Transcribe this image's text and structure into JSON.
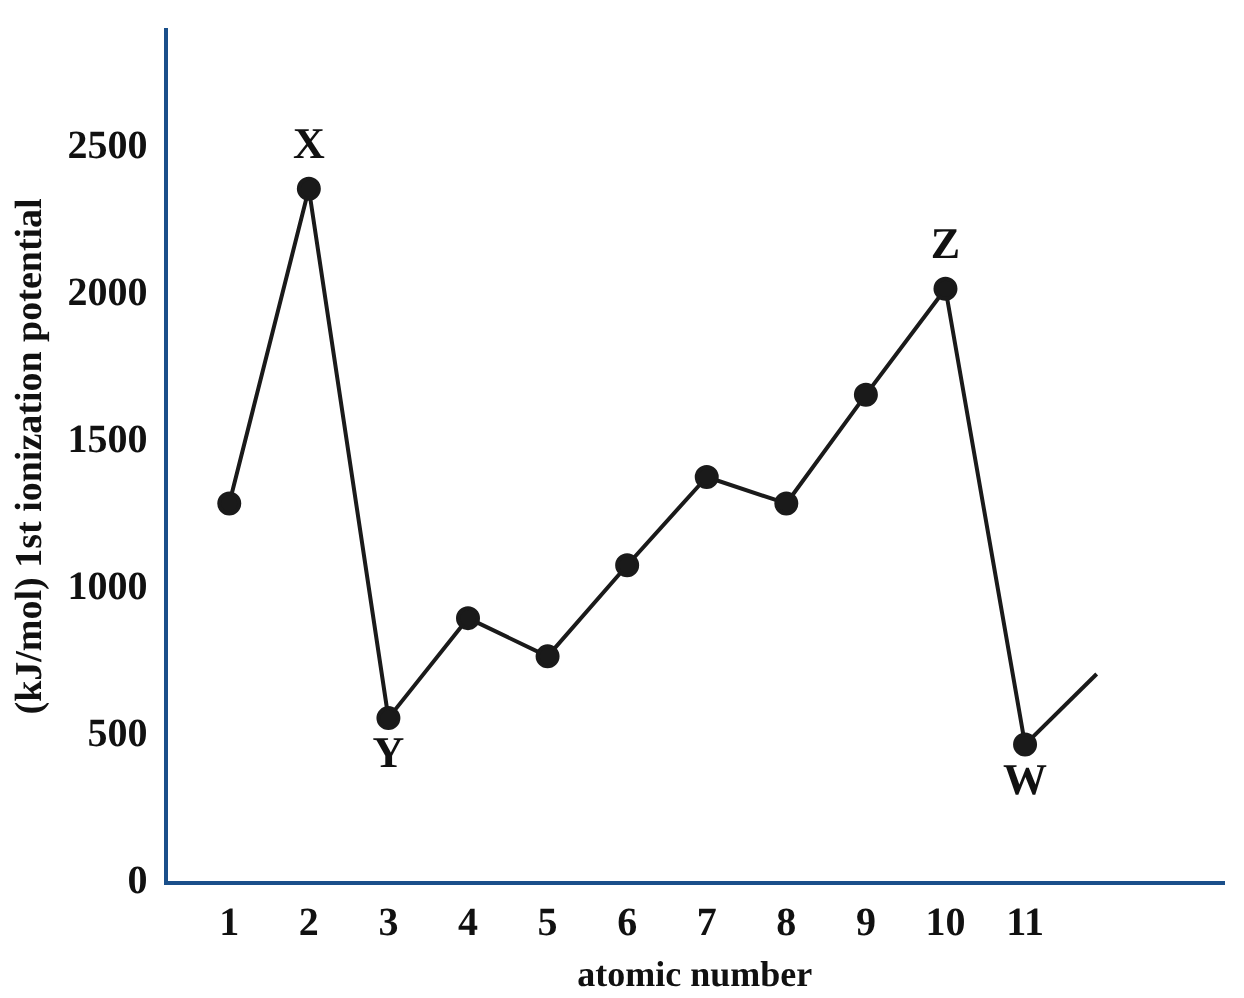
{
  "chart_data": {
    "type": "line",
    "xlabel": "atomic number",
    "ylabel": "(kJ/mol) 1st ionization potential",
    "series": [
      {
        "color": "#1a1a1a",
        "x": [
          1,
          2,
          3,
          4,
          5,
          6,
          7,
          8,
          9,
          10,
          11
        ],
        "values": [
          1290,
          2360,
          560,
          900,
          770,
          1080,
          1380,
          1290,
          1660,
          2020,
          470
        ],
        "marker": "circle"
      },
      {
        "color": "#1a1a1a",
        "x": [
          11,
          11.9
        ],
        "values": [
          470,
          710
        ],
        "marker": "none"
      }
    ],
    "xlim": [
      0.2,
      13.5
    ],
    "xticks": [
      1,
      2,
      3,
      4,
      5,
      6,
      7,
      8,
      9,
      10,
      11
    ],
    "ylim": [
      0,
      2900
    ],
    "yticks": [
      0,
      500,
      1000,
      1500,
      2000,
      2500
    ],
    "grid": false,
    "legend": false,
    "annotations": [
      {
        "text": "X",
        "x": 2,
        "y": 2360
      },
      {
        "text": "Y",
        "x": 3,
        "y": 560
      },
      {
        "text": "Z",
        "x": 10,
        "y": 2020
      },
      {
        "text": "W",
        "x": 11,
        "y": 470
      }
    ]
  }
}
